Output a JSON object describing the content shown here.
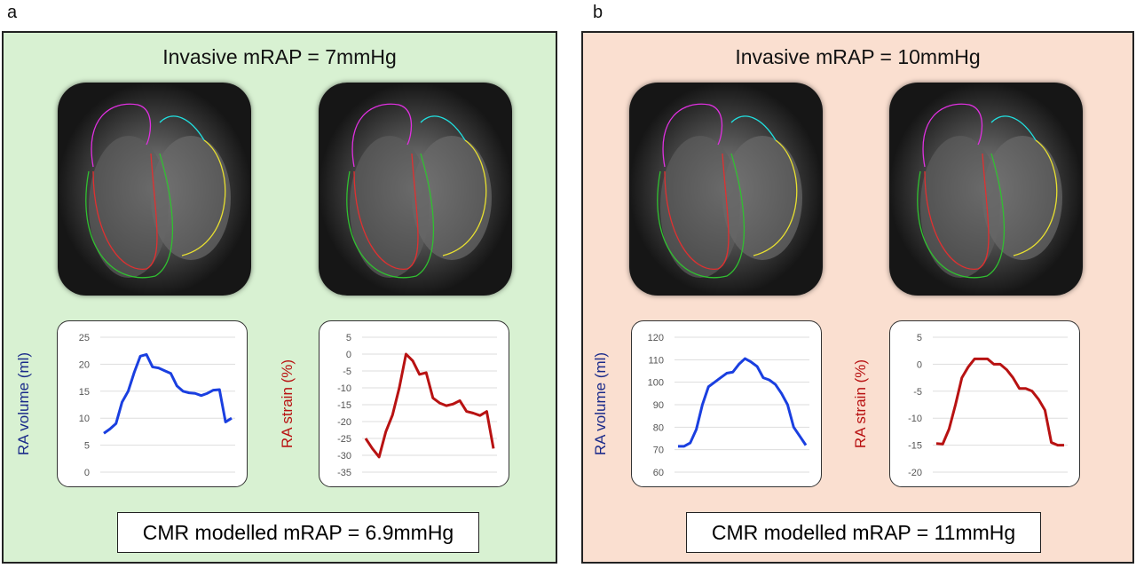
{
  "panels": [
    {
      "label": "a",
      "title": "Invasive mRAP = 7mmHg",
      "result": "CMR modelled mRAP = 6.9mmHg",
      "background": "#d8f1d2"
    },
    {
      "label": "b",
      "title": "Invasive mRAP = 10mmHg",
      "result": "CMR modelled mRAP = 11mmHg",
      "background": "#fadfd0"
    }
  ],
  "chart_data": [
    {
      "type": "line",
      "panel": "a",
      "ylabel": "RA volume (ml)",
      "color": "#1a3fe0",
      "label_color": "#1a2a8a",
      "ylim": [
        0,
        25
      ],
      "yticks": [
        0,
        5,
        10,
        15,
        20,
        25
      ],
      "grid": true,
      "values": [
        7.2,
        8,
        9,
        13,
        15,
        18.5,
        21.5,
        21.8,
        19.5,
        19.3,
        18.8,
        18.3,
        16,
        15,
        14.7,
        14.6,
        14.2,
        14.6,
        15.2,
        15.3,
        9.3,
        10
      ]
    },
    {
      "type": "line",
      "panel": "a",
      "ylabel": "RA strain (%)",
      "color": "#b81212",
      "label_color": "#b81212",
      "ylim": [
        -35,
        5
      ],
      "yticks": [
        -35,
        -30,
        -25,
        -20,
        -15,
        -10,
        -5,
        0,
        5
      ],
      "grid": true,
      "values": [
        -25,
        -28,
        -30.5,
        -23,
        -18,
        -10,
        0,
        -2,
        -6,
        -5.5,
        -13,
        -14.5,
        -15.3,
        -14.8,
        -13.8,
        -17,
        -17.5,
        -18.2,
        -17,
        -28
      ]
    },
    {
      "type": "line",
      "panel": "b",
      "ylabel": "RA volume (ml)",
      "color": "#1a3fe0",
      "label_color": "#1a2a8a",
      "ylim": [
        60,
        120
      ],
      "yticks": [
        60,
        70,
        80,
        90,
        100,
        110,
        120
      ],
      "grid": true,
      "values": [
        71.5,
        71.5,
        73,
        79,
        90,
        98,
        100,
        102,
        104,
        104.5,
        108,
        110.5,
        109,
        107,
        102,
        101,
        99,
        95,
        90,
        80,
        76,
        72
      ]
    },
    {
      "type": "line",
      "panel": "b",
      "ylabel": "RA strain (%)",
      "color": "#b81212",
      "label_color": "#b81212",
      "ylim": [
        -20,
        5
      ],
      "yticks": [
        -20,
        -15,
        -10,
        -5,
        0,
        5
      ],
      "grid": true,
      "values": [
        -14.7,
        -14.8,
        -12,
        -7.5,
        -2.5,
        -0.5,
        1,
        1,
        1,
        0,
        0,
        -1,
        -2.5,
        -4.5,
        -4.5,
        -5,
        -6.5,
        -8.5,
        -14.5,
        -15,
        -15
      ]
    }
  ]
}
